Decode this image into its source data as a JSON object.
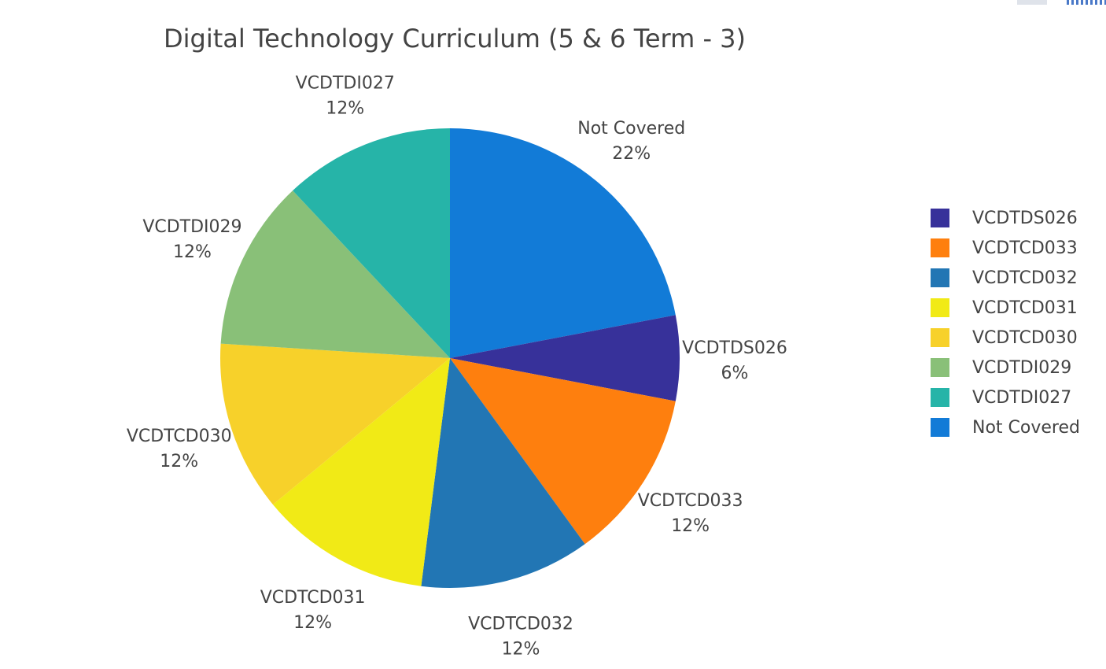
{
  "chart_data": {
    "type": "pie",
    "title": "Digital Technology Curriculum (5 & 6 Term - 3)",
    "slices": [
      {
        "name": "Not Covered",
        "value": 22,
        "label": "22%",
        "color": "#127bd7"
      },
      {
        "name": "VCDTDS026",
        "value": 6,
        "label": "6%",
        "color": "#37319a"
      },
      {
        "name": "VCDTCD033",
        "value": 12,
        "label": "12%",
        "color": "#fe7f0e"
      },
      {
        "name": "VCDTCD032",
        "value": 12,
        "label": "12%",
        "color": "#2276b4"
      },
      {
        "name": "VCDTCD031",
        "value": 12,
        "label": "12%",
        "color": "#f1ea16"
      },
      {
        "name": "VCDTCD030",
        "value": 12,
        "label": "12%",
        "color": "#f7d12a"
      },
      {
        "name": "VCDTDI029",
        "value": 12,
        "label": "12%",
        "color": "#89c078"
      },
      {
        "name": "VCDTDI027",
        "value": 12,
        "label": "12%",
        "color": "#26b4a8"
      }
    ],
    "legend": {
      "placement": "right",
      "entries": [
        "VCDTDS026",
        "VCDTCD033",
        "VCDTCD032",
        "VCDTCD031",
        "VCDTCD030",
        "VCDTDI029",
        "VCDTDI027",
        "Not Covered"
      ]
    }
  }
}
